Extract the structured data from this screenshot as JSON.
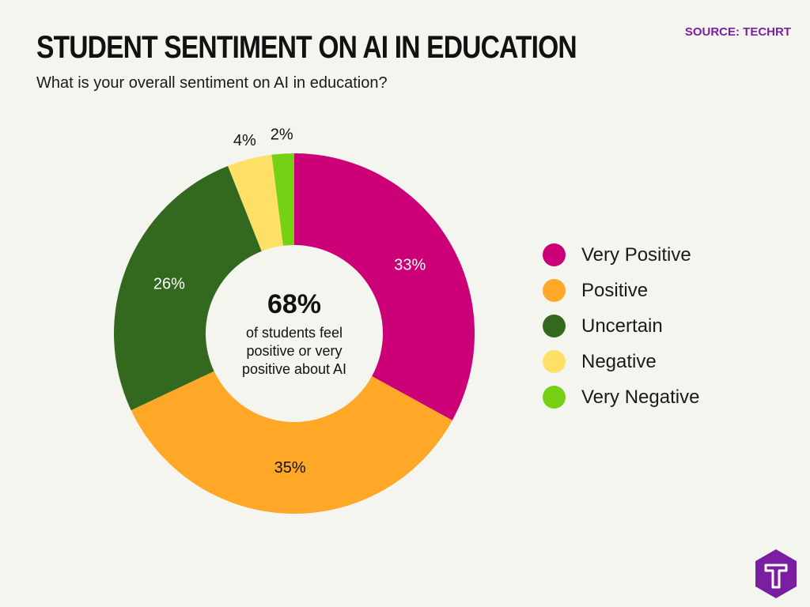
{
  "header": {
    "title": "STUDENT SENTIMENT ON AI IN EDUCATION",
    "subtitle": "What is your overall sentiment on AI in education?",
    "source": "SOURCE: TECHRT"
  },
  "center": {
    "value": "68%",
    "line1": "of students feel",
    "line2": "positive or very",
    "line3": "positive about AI"
  },
  "chart_data": {
    "type": "pie",
    "donut": true,
    "categories": [
      "Very Positive",
      "Positive",
      "Uncertain",
      "Negative",
      "Very Negative"
    ],
    "values": [
      33,
      35,
      26,
      4,
      2
    ],
    "labels": [
      "33%",
      "35%",
      "26%",
      "4%",
      "2%"
    ],
    "colors": [
      "#cc0077",
      "#ffa726",
      "#33691e",
      "#ffe066",
      "#76d114"
    ],
    "label_colors": [
      "#ffffff",
      "#111111",
      "#ffffff",
      "#111111",
      "#111111"
    ],
    "label_outside": [
      false,
      false,
      false,
      true,
      true
    ],
    "legend_position": "right",
    "start_angle": "top",
    "direction": "clockwise"
  },
  "logo": {
    "name": "techrt-logo-icon",
    "color": "#7b1fa2"
  }
}
